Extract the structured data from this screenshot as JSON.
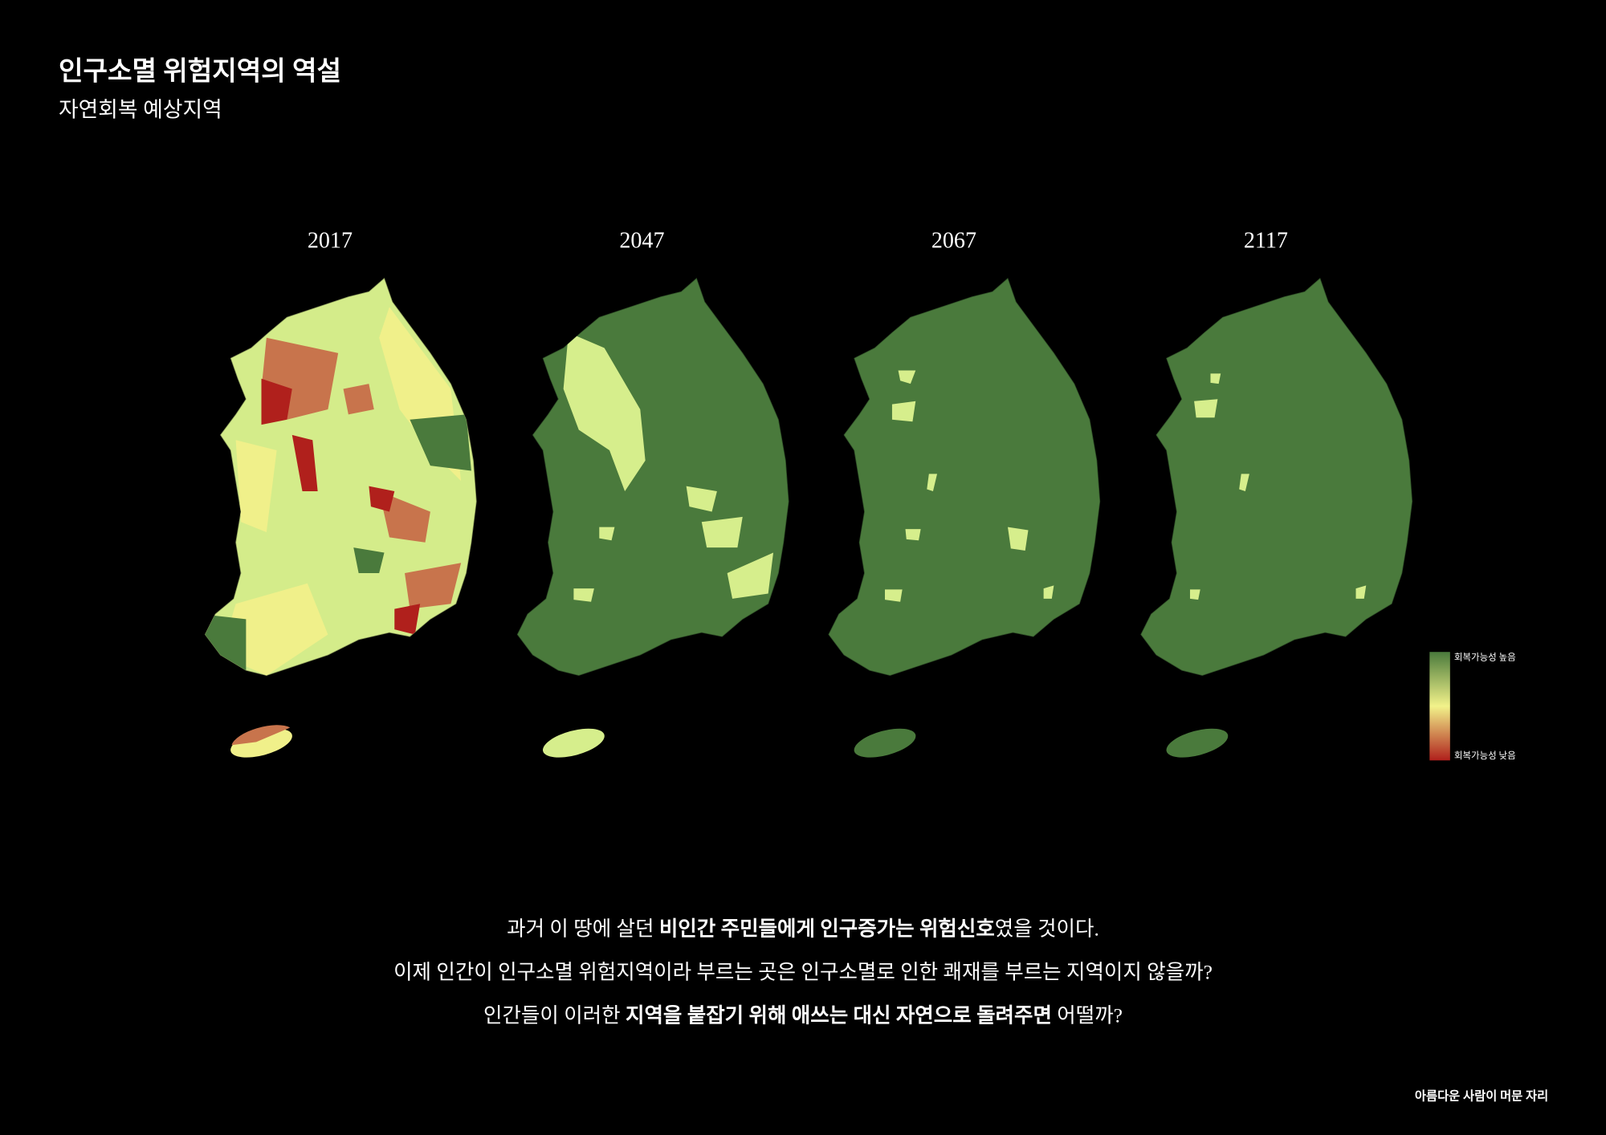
{
  "header": {
    "title": "인구소멸 위험지역의 역설",
    "subtitle": "자연회복 예상지역"
  },
  "panels": [
    {
      "year": "2017"
    },
    {
      "year": "2047"
    },
    {
      "year": "2067"
    },
    {
      "year": "2117"
    }
  ],
  "legend": {
    "high": "회복가능성 높음",
    "low": "회복가능성 낮음"
  },
  "body": {
    "lines": [
      [
        {
          "text": "과거 이 땅에 살던 ",
          "bold": false
        },
        {
          "text": "비인간 주민들에게 인구증가는 위험신호",
          "bold": true
        },
        {
          "text": "였을 것이다.",
          "bold": false
        }
      ],
      [
        {
          "text": "이제 인간이 인구소멸 위험지역이라 부르는 곳은 인구소멸로 인한 쾌재를 부르는 지역이지 않을까?",
          "bold": false
        }
      ],
      [
        {
          "text": "인간들이 이러한 ",
          "bold": false
        },
        {
          "text": "지역을 붙잡기 위해 애쓰는 대신 자연으로 돌려주면",
          "bold": true
        },
        {
          "text": " 어떨까?",
          "bold": false
        }
      ]
    ]
  },
  "footer": {
    "credit": "아름다운 사람이 머문 자리"
  }
}
